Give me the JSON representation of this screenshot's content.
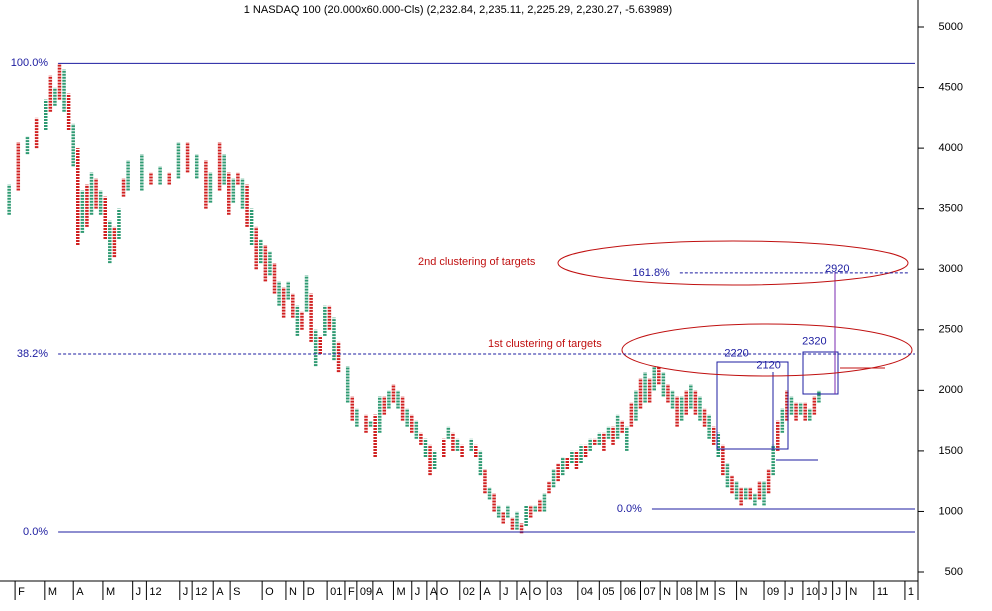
{
  "chart_data": {
    "type": "point-figure",
    "title": "1 NASDAQ 100 (20.000x60.000-Cls) (2,232.84, 2,235.11, 2,225.29, 2,230.27, -5.63989)",
    "ylim": [
      434,
      5223
    ],
    "yticks": [
      500,
      1000,
      1500,
      2000,
      2500,
      3000,
      3500,
      4000,
      4500,
      5000
    ],
    "xlim": [
      -1,
      199
    ],
    "xticks": [
      {
        "value": 2.3,
        "label": "F"
      },
      {
        "value": 8.8,
        "label": "M"
      },
      {
        "value": 15,
        "label": "A"
      },
      {
        "value": 21.5,
        "label": "M"
      },
      {
        "value": 28,
        "label": "J"
      },
      {
        "value": 31,
        "label": "12"
      },
      {
        "value": 38.3,
        "label": "J"
      },
      {
        "value": 41,
        "label": "12"
      },
      {
        "value": 45.6,
        "label": "A"
      },
      {
        "value": 49.3,
        "label": "S"
      },
      {
        "value": 56.3,
        "label": "O"
      },
      {
        "value": 61.5,
        "label": "N"
      },
      {
        "value": 65.4,
        "label": "D"
      },
      {
        "value": 70.5,
        "label": "01"
      },
      {
        "value": 74.4,
        "label": "F"
      },
      {
        "value": 77,
        "label": "09"
      },
      {
        "value": 80.5,
        "label": "A"
      },
      {
        "value": 85,
        "label": "M"
      },
      {
        "value": 89,
        "label": "J"
      },
      {
        "value": 92.3,
        "label": "A"
      },
      {
        "value": 94.5,
        "label": "O"
      },
      {
        "value": 99.5,
        "label": "02"
      },
      {
        "value": 104,
        "label": "A"
      },
      {
        "value": 108.3,
        "label": "J"
      },
      {
        "value": 112,
        "label": "A"
      },
      {
        "value": 114.8,
        "label": "O"
      },
      {
        "value": 118.6,
        "label": "03"
      },
      {
        "value": 125.3,
        "label": "04"
      },
      {
        "value": 130,
        "label": "05"
      },
      {
        "value": 134.7,
        "label": "06"
      },
      {
        "value": 139,
        "label": "07"
      },
      {
        "value": 143.3,
        "label": "N"
      },
      {
        "value": 147,
        "label": "08"
      },
      {
        "value": 151.3,
        "label": "M"
      },
      {
        "value": 155.3,
        "label": "S"
      },
      {
        "value": 160,
        "label": "N"
      },
      {
        "value": 166,
        "label": "09"
      },
      {
        "value": 170.6,
        "label": "J"
      },
      {
        "value": 174.5,
        "label": "10"
      },
      {
        "value": 178,
        "label": "J"
      },
      {
        "value": 181,
        "label": "J"
      },
      {
        "value": 184,
        "label": "N"
      },
      {
        "value": 190,
        "label": "11"
      },
      {
        "value": 196.8,
        "label": "1"
      }
    ],
    "colors": {
      "X": "#2e9a72",
      "O": "#d02020",
      "level": "#1c1ca0",
      "annotation": "#c01010"
    },
    "columns": {
      "x": [
        1,
        3,
        5,
        7,
        9,
        10,
        11,
        12,
        13,
        14,
        15,
        16,
        17,
        18,
        19,
        20,
        21,
        22,
        23,
        24,
        25,
        26,
        27,
        30,
        32,
        34,
        36,
        38,
        40,
        42,
        44,
        45,
        47,
        48,
        49,
        50,
        51,
        52,
        53,
        54,
        55,
        56,
        57,
        58,
        59,
        60,
        61,
        62,
        63,
        64,
        65,
        66,
        67,
        68,
        69,
        70,
        71,
        72,
        73,
        75,
        76,
        77,
        79,
        80,
        81,
        82,
        83,
        84,
        85,
        86,
        87,
        88,
        89,
        90,
        91,
        92,
        93,
        94,
        96,
        97,
        98,
        99,
        100,
        102,
        103,
        104,
        105,
        106,
        107,
        108,
        109,
        110,
        111,
        112,
        113,
        114,
        115,
        116,
        117,
        118,
        119,
        120,
        121,
        122,
        123,
        124,
        125,
        126,
        127,
        128,
        129,
        130,
        131,
        132,
        133,
        134,
        135,
        136,
        137,
        138,
        139,
        140,
        141,
        142,
        143,
        144,
        145,
        146,
        147,
        148,
        149,
        150,
        151,
        152,
        153,
        154,
        155,
        156,
        157,
        158,
        159,
        160,
        161,
        162,
        163,
        164,
        165,
        166,
        167,
        168,
        169,
        170,
        171,
        172,
        173,
        174,
        175,
        176,
        177,
        178,
        179,
        180
      ],
      "low": [
        3450,
        3650,
        3950,
        4000,
        4150,
        4300,
        4350,
        4400,
        4300,
        4150,
        3850,
        3200,
        3300,
        3350,
        3450,
        3500,
        3450,
        3250,
        3050,
        3100,
        3250,
        3600,
        3650,
        3650,
        3700,
        3700,
        3700,
        3750,
        3800,
        3750,
        3500,
        3550,
        3650,
        3700,
        3450,
        3550,
        3700,
        3500,
        3350,
        3200,
        3000,
        3050,
        2900,
        2950,
        2800,
        2700,
        2600,
        2750,
        2600,
        2450,
        2500,
        2650,
        2400,
        2200,
        2300,
        2450,
        2500,
        2250,
        2150,
        1900,
        1750,
        1700,
        1650,
        1700,
        1450,
        1650,
        1800,
        1850,
        1900,
        1850,
        1750,
        1700,
        1650,
        1600,
        1550,
        1450,
        1300,
        1350,
        1450,
        1600,
        1500,
        1500,
        1450,
        1500,
        1450,
        1300,
        1150,
        1100,
        1000,
        950,
        900,
        950,
        850,
        850,
        820,
        880,
        950,
        1000,
        1000,
        1000,
        1150,
        1200,
        1250,
        1300,
        1350,
        1400,
        1350,
        1400,
        1450,
        1500,
        1550,
        1550,
        1500,
        1600,
        1550,
        1600,
        1650,
        1500,
        1700,
        1750,
        1850,
        1900,
        1900,
        2000,
        2050,
        1950,
        1900,
        1850,
        1700,
        1750,
        1800,
        1850,
        1800,
        1750,
        1700,
        1600,
        1550,
        1450,
        1300,
        1200,
        1150,
        1100,
        1050,
        1100,
        1100,
        1050,
        1100,
        1050,
        1150,
        1300,
        1500,
        1650,
        1750,
        1800,
        1750,
        1800,
        1750,
        1750,
        1800,
        1900,
        1950,
        2100
      ],
      "high": [
        3700,
        4050,
        4100,
        4250,
        4400,
        4600,
        4500,
        4700,
        4650,
        4450,
        4200,
        4000,
        3650,
        3700,
        3800,
        3750,
        3650,
        3600,
        3400,
        3350,
        3500,
        3750,
        3900,
        3950,
        3800,
        3850,
        3800,
        4050,
        4050,
        3950,
        3900,
        3800,
        4050,
        3950,
        3800,
        3750,
        3800,
        3750,
        3700,
        3500,
        3350,
        3250,
        3200,
        3150,
        3050,
        2900,
        2850,
        2900,
        2800,
        2700,
        2650,
        2950,
        2800,
        2500,
        2450,
        2700,
        2700,
        2600,
        2400,
        2200,
        1950,
        1850,
        1800,
        1750,
        1800,
        1950,
        1950,
        2000,
        2050,
        2000,
        1950,
        1850,
        1800,
        1750,
        1650,
        1600,
        1550,
        1500,
        1600,
        1700,
        1650,
        1600,
        1550,
        1600,
        1550,
        1500,
        1350,
        1200,
        1150,
        1050,
        1000,
        1050,
        950,
        1000,
        900,
        1050,
        1050,
        1050,
        1100,
        1150,
        1250,
        1350,
        1400,
        1450,
        1450,
        1500,
        1500,
        1550,
        1550,
        1600,
        1600,
        1650,
        1650,
        1700,
        1700,
        1800,
        1750,
        1700,
        1900,
        2000,
        2100,
        2150,
        2100,
        2200,
        2200,
        2150,
        2050,
        2000,
        1950,
        1950,
        2000,
        2050,
        2000,
        1950,
        1850,
        1800,
        1700,
        1650,
        1550,
        1400,
        1300,
        1250,
        1200,
        1200,
        1200,
        1150,
        1250,
        1250,
        1350,
        1550,
        1750,
        1850,
        2000,
        1950,
        1900,
        1900,
        1900,
        1850,
        1950,
        2000,
        2150,
        2200
      ],
      "kind": [
        "X",
        "O",
        "X",
        "O",
        "X",
        "O",
        "X",
        "O",
        "X",
        "O",
        "X",
        "O",
        "X",
        "O",
        "X",
        "O",
        "X",
        "O",
        "X",
        "O",
        "X",
        "O",
        "X",
        "X",
        "O",
        "X",
        "O",
        "X",
        "O",
        "X",
        "O",
        "X",
        "O",
        "X",
        "O",
        "X",
        "O",
        "X",
        "O",
        "X",
        "O",
        "X",
        "O",
        "X",
        "O",
        "X",
        "O",
        "X",
        "O",
        "X",
        "O",
        "X",
        "O",
        "X",
        "O",
        "X",
        "O",
        "X",
        "O",
        "X",
        "O",
        "X",
        "O",
        "X",
        "O",
        "X",
        "O",
        "X",
        "O",
        "X",
        "O",
        "X",
        "O",
        "X",
        "O",
        "X",
        "O",
        "X",
        "O",
        "X",
        "O",
        "X",
        "O",
        "X",
        "O",
        "X",
        "O",
        "X",
        "O",
        "X",
        "O",
        "X",
        "O",
        "X",
        "O",
        "X",
        "O",
        "X",
        "O",
        "X",
        "O",
        "X",
        "O",
        "X",
        "O",
        "X",
        "O",
        "X",
        "O",
        "X",
        "O",
        "X",
        "O",
        "X",
        "O",
        "X",
        "O",
        "X",
        "O",
        "X",
        "O",
        "X",
        "O",
        "X",
        "O",
        "X",
        "O",
        "X",
        "O",
        "X",
        "O",
        "X",
        "O",
        "X",
        "O",
        "X",
        "O",
        "X",
        "O",
        "X",
        "O",
        "X",
        "O",
        "X",
        "O",
        "X",
        "O",
        "X",
        "O",
        "X",
        "O",
        "X",
        "O",
        "X",
        "O",
        "X",
        "O",
        "X",
        "O",
        "X"
      ]
    },
    "levels": [
      {
        "label": "100.0%",
        "value": 4700,
        "x": [
          11.7,
          199
        ],
        "dashed": false
      },
      {
        "label": "38.2%",
        "value": 2300,
        "x": [
          11.7,
          199
        ],
        "dashed": true
      },
      {
        "label": "0.0%",
        "value": 830,
        "x": [
          11.7,
          199
        ],
        "dashed": false
      },
      {
        "label": "161.8%",
        "value": 2970,
        "x": [
          147.6,
          197.5
        ],
        "dashed": true
      },
      {
        "label": "0.0%",
        "value": 1020,
        "x": [
          141.5,
          199
        ],
        "dashed": false
      }
    ],
    "targets": [
      {
        "value": 2220,
        "x": 160
      },
      {
        "value": 2120,
        "x": 167
      },
      {
        "value": 2320,
        "x": 177
      },
      {
        "value": 2920,
        "x": 182
      }
    ],
    "annotations": [
      "2nd clustering of targets",
      "1st clustering of targets"
    ]
  }
}
